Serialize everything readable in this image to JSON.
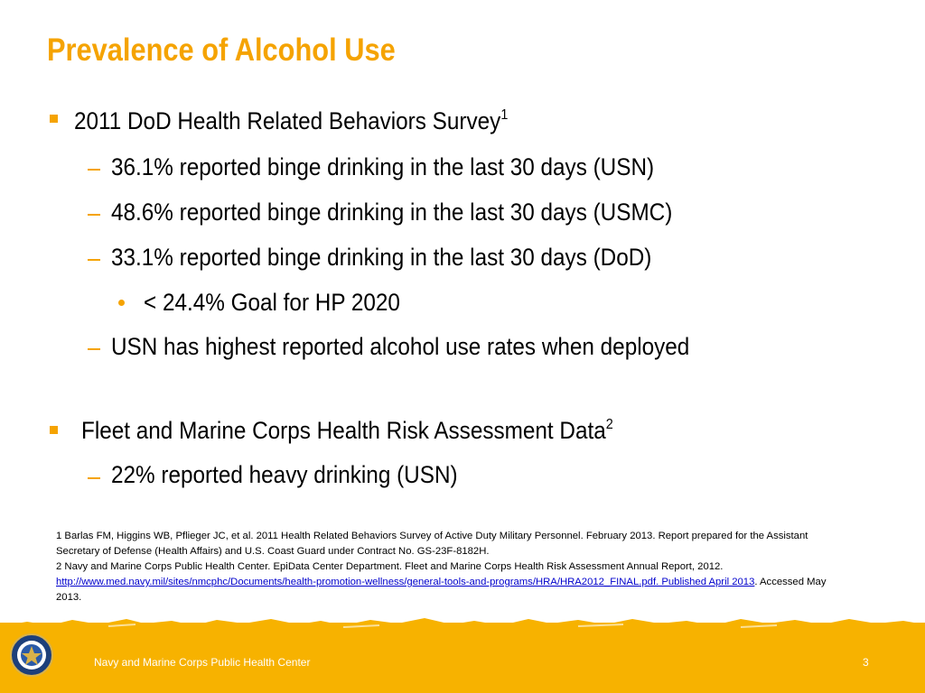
{
  "slide": {
    "title": "Prevalence of Alcohol Use",
    "bullets": [
      {
        "text": "2011 DoD Health Related Behaviors Survey",
        "sup": "1"
      },
      {
        "text": "36.1% reported binge drinking in the last 30 days (USN)"
      },
      {
        "text": "48.6% reported binge drinking in the last 30 days (USMC)"
      },
      {
        "text": "33.1% reported binge drinking in the last 30 days (DoD)"
      },
      {
        "text": "< 24.4% Goal for HP 2020"
      },
      {
        "text": "USN has highest reported alcohol use rates when deployed"
      },
      {
        "text": "Fleet and Marine Corps Health Risk Assessment Data",
        "sup": "2"
      },
      {
        "text": "22% reported heavy drinking (USN)"
      }
    ],
    "footnotes": {
      "f1_line1": "1  Barlas FM, Higgins WB, Pflieger JC, et al. 2011 Health Related Behaviors Survey of Active Duty Military Personnel. February 2013. Report prepared for the Assistant",
      "f1_line2": "Secretary of Defense (Health Affairs) and U.S. Coast Guard under Contract No. GS-23F-8182H.",
      "f2_line1": "2  Navy and Marine Corps Public Health Center. EpiData Center Department. Fleet and Marine Corps Health Risk Assessment  Annual Report, 2012.",
      "f2_link": "http://www.med.navy.mil/sites/nmcphc/Documents/health-promotion-wellness/general-tools-and-programs/HRA/HRA2012_FINAL.pdf. Published April 2013",
      "f2_tail": ". Accessed May",
      "f2_line3": "2013."
    }
  },
  "footer": {
    "organization": "Navy and Marine Corps Public Health Center",
    "page_number": "3"
  },
  "colors": {
    "accent": "#f5a300",
    "band": "#f7b200"
  },
  "icons": {
    "seal": "navy-marine-corps-public-health-seal"
  }
}
